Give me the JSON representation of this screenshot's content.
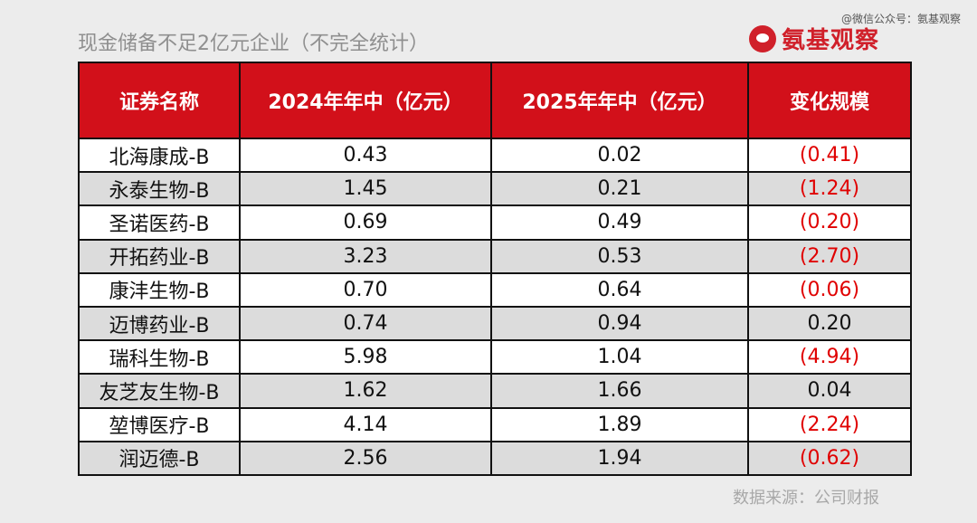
{
  "title": "现金储备不足2亿元企业（不完全统计）",
  "watermark": "@微信公众号：氨基观察",
  "logo_text": "氨基观察",
  "headers": [
    "证券名称",
    "2024年年中（亿元）",
    "2025年年中（亿元）",
    "变化规模"
  ],
  "rows": [
    {
      "name": "北海康成-B",
      "v2024": "0.43",
      "v2025": "0.02",
      "change": "(0.41)",
      "negative": true
    },
    {
      "name": "永泰生物-B",
      "v2024": "1.45",
      "v2025": "0.21",
      "change": "(1.24)",
      "negative": true
    },
    {
      "name": "圣诺医药-B",
      "v2024": "0.69",
      "v2025": "0.49",
      "change": "(0.20)",
      "negative": true
    },
    {
      "name": "开拓药业-B",
      "v2024": "3.23",
      "v2025": "0.53",
      "change": "(2.70)",
      "negative": true
    },
    {
      "name": "康沣生物-B",
      "v2024": "0.70",
      "v2025": "0.64",
      "change": "(0.06)",
      "negative": true
    },
    {
      "name": "迈博药业-B",
      "v2024": "0.74",
      "v2025": "0.94",
      "change": "0.20",
      "negative": false
    },
    {
      "name": "瑞科生物-B",
      "v2024": "5.98",
      "v2025": "1.04",
      "change": "(4.94)",
      "negative": true
    },
    {
      "name": "友芝友生物-B",
      "v2024": "1.62",
      "v2025": "1.66",
      "change": "0.04",
      "negative": false
    },
    {
      "name": "堃博医疗-B",
      "v2024": "4.14",
      "v2025": "1.89",
      "change": "(2.24)",
      "negative": true
    },
    {
      "name": "润迈德-B",
      "v2024": "2.56",
      "v2025": "1.94",
      "change": "(0.62)",
      "negative": true
    }
  ],
  "source": "数据来源：公司财报",
  "colors": {
    "header_bg": "#d2101a",
    "negative": "#e00000",
    "brand": "#d0202a"
  }
}
